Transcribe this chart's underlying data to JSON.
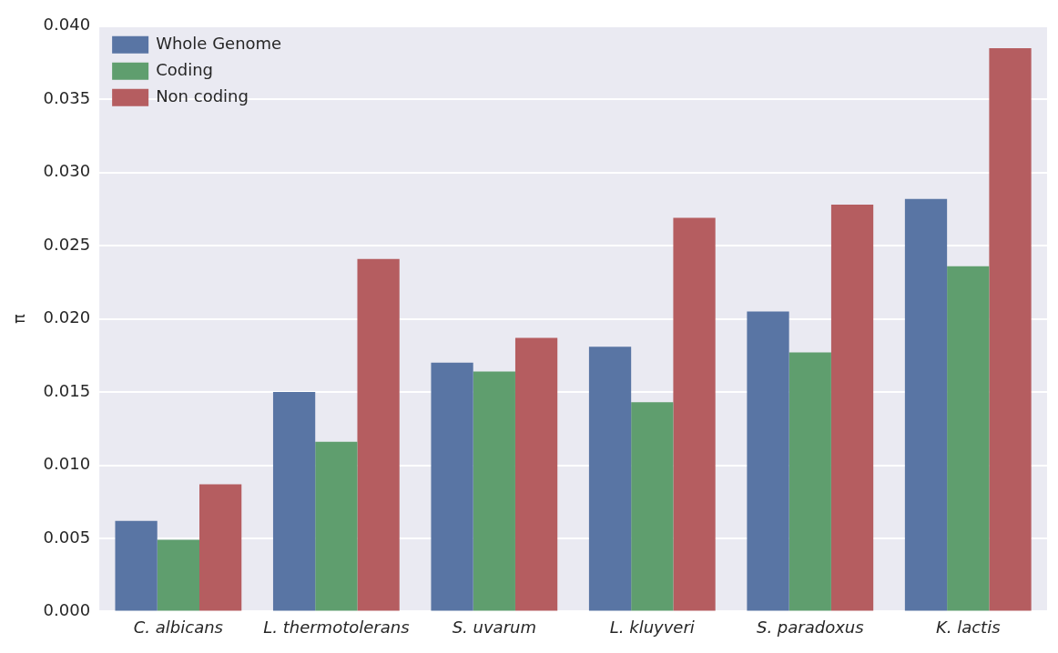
{
  "chart_data": {
    "type": "bar",
    "ylabel": "π",
    "categories": [
      "C. albicans",
      "L. thermotolerans",
      "S. uvarum",
      "L. kluyveri",
      "S. paradoxus",
      "K. lactis"
    ],
    "series": [
      {
        "name": "Whole Genome",
        "color": "#5975a4",
        "values": [
          0.0062,
          0.015,
          0.017,
          0.0181,
          0.0205,
          0.0282
        ]
      },
      {
        "name": "Coding",
        "color": "#5f9e6e",
        "values": [
          0.0049,
          0.0116,
          0.0164,
          0.0143,
          0.0177,
          0.0236
        ]
      },
      {
        "name": "Non coding",
        "color": "#b55d60",
        "values": [
          0.0087,
          0.0241,
          0.0187,
          0.0269,
          0.0278,
          0.0385
        ]
      }
    ],
    "ylim": [
      0,
      0.04
    ],
    "yticks": [
      {
        "value": 0,
        "label": "0.000"
      },
      {
        "value": 0.005,
        "label": "0.005"
      },
      {
        "value": 0.01,
        "label": "0.010"
      },
      {
        "value": 0.015,
        "label": "0.015"
      },
      {
        "value": 0.02,
        "label": "0.020"
      },
      {
        "value": 0.025,
        "label": "0.025"
      },
      {
        "value": 0.03,
        "label": "0.030"
      },
      {
        "value": 0.035,
        "label": "0.035"
      },
      {
        "value": 0.04,
        "label": "0.040"
      }
    ],
    "grid": "y",
    "legend": "top left"
  }
}
